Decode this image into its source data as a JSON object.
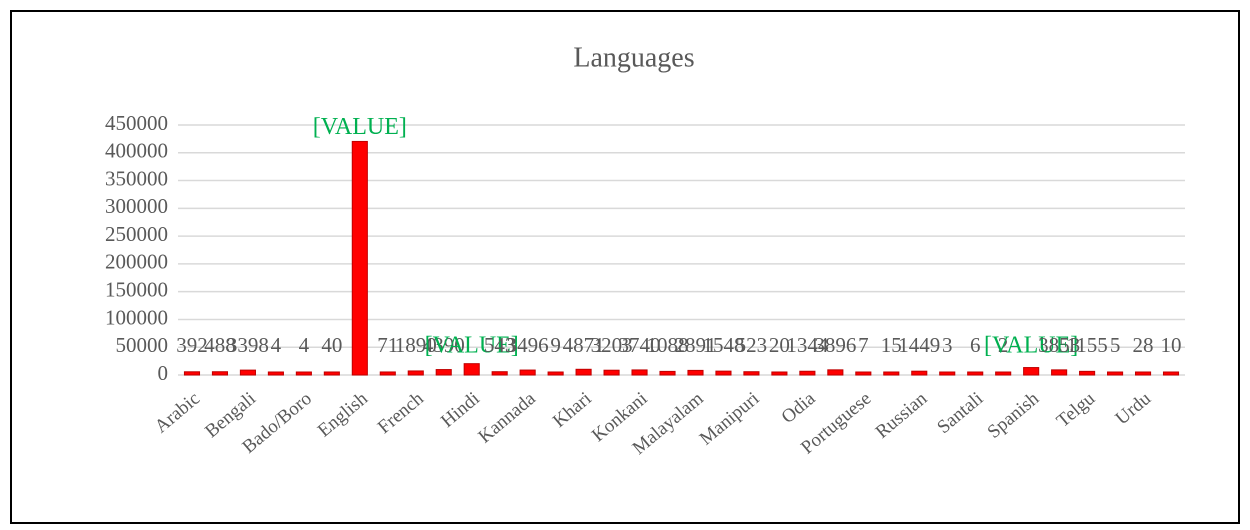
{
  "chart_data": {
    "type": "bar",
    "title": "Languages",
    "categories": [
      "Arabic",
      null,
      "Bengali",
      null,
      "Bado/Boro",
      null,
      "English",
      null,
      "French",
      null,
      "Hindi",
      null,
      "Kannada",
      null,
      "Khari",
      null,
      "Konkani",
      null,
      "Malayalam",
      null,
      "Manipuri",
      null,
      "Odia",
      null,
      "Portuguese",
      null,
      "Russian",
      null,
      "Santali",
      null,
      "Spanish",
      null,
      "Telgu",
      null,
      "Urdu",
      null
    ],
    "values": [
      392,
      488,
      3398,
      4,
      4,
      40,
      415000,
      71,
      1890,
      4390,
      15000,
      543,
      3496,
      9,
      4871,
      3203,
      3740,
      1088,
      2891,
      1548,
      523,
      20,
      1344,
      3896,
      7,
      15,
      1449,
      3,
      6,
      2,
      8000,
      3853,
      1155,
      5,
      28,
      10
    ],
    "value_labels": [
      null,
      null,
      null,
      null,
      null,
      null,
      "[VALUE]",
      null,
      null,
      null,
      "[VALUE]",
      null,
      null,
      null,
      null,
      null,
      null,
      null,
      null,
      null,
      null,
      null,
      null,
      null,
      null,
      null,
      null,
      null,
      null,
      null,
      "[VALUE]",
      null,
      null,
      null,
      null,
      null
    ],
    "color": "#ff0000",
    "ylim": [
      0,
      450000
    ],
    "yticks": [
      0,
      50000,
      100000,
      150000,
      200000,
      250000,
      300000,
      350000,
      400000,
      450000
    ],
    "grid": true
  }
}
